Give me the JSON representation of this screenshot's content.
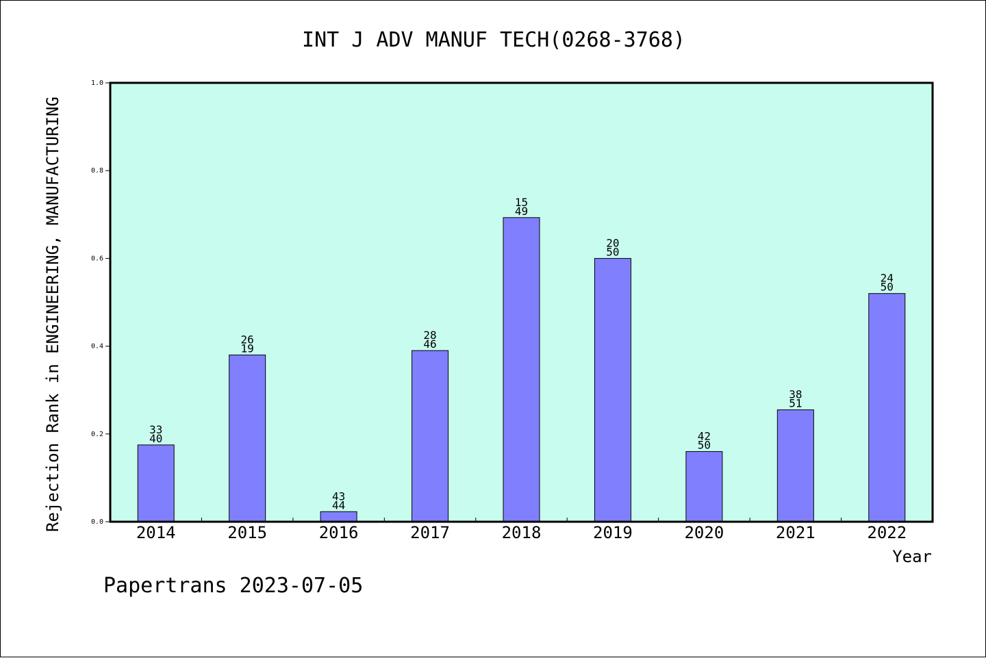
{
  "chart_data": {
    "type": "bar",
    "title": "INT J ADV MANUF TECH(0268-3768)",
    "xlabel": "Year",
    "ylabel": "Rejection Rank in ENGINEERING, MANUFACTURING",
    "ylim": [
      0,
      1.0
    ],
    "yticks": [
      "0.0",
      "0.2",
      "0.4",
      "0.6",
      "0.8",
      "1.0"
    ],
    "categories": [
      "2014",
      "2015",
      "2016",
      "2017",
      "2018",
      "2019",
      "2020",
      "2021",
      "2022"
    ],
    "values": [
      0.175,
      0.38,
      0.023,
      0.39,
      0.693,
      0.6,
      0.16,
      0.255,
      0.52
    ],
    "label_top": [
      "33",
      "26",
      "43",
      "28",
      "15",
      "20",
      "42",
      "38",
      "24"
    ],
    "label_bottom": [
      "40",
      "19",
      "44",
      "46",
      "49",
      "50",
      "50",
      "51",
      "50"
    ],
    "grid": false,
    "colors": {
      "plot_bg": "#c8fcee",
      "bar": "#8080ff",
      "axis": "#000000"
    }
  },
  "footer": {
    "text": "Papertrans 2023-07-05"
  }
}
